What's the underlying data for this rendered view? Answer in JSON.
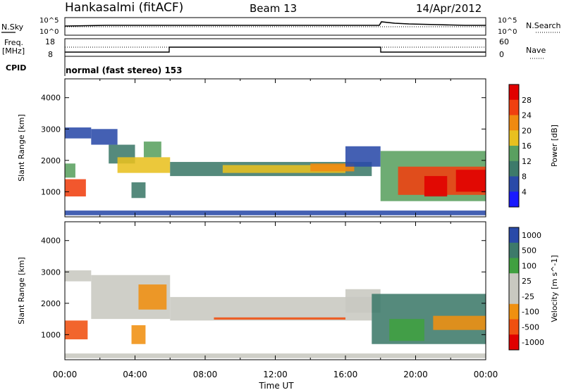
{
  "header": {
    "station": "Hankasalmi (fitACF)",
    "beam": "Beam 13",
    "date": "14/Apr/2012"
  },
  "noise_panel": {
    "left_label": "N.Sky",
    "right_label": "N.Search",
    "ticks": [
      "10^5",
      "10^0"
    ]
  },
  "freq_panel": {
    "left_label_1": "Freq.",
    "left_label_2": "[MHz]",
    "left_ticks": [
      "18",
      "8"
    ],
    "right_label": "Nave",
    "right_ticks": [
      "60",
      "0"
    ]
  },
  "cpid": {
    "label": "CPID",
    "text": "normal (fast stereo) 153"
  },
  "colors": {
    "power_scale": [
      "#1a1aff",
      "#2a4aa8",
      "#3d7a6a",
      "#5aa060",
      "#e8c020",
      "#f08a10",
      "#f04010",
      "#e00000"
    ],
    "velocity_scale": [
      "#e00000",
      "#f05010",
      "#f09010",
      "#c8c8c0",
      "#c8c8c0",
      "#40a040",
      "#3d7a6a",
      "#2a4aa8"
    ],
    "ground_scatter": "#c8c8c0"
  },
  "chart_data": [
    {
      "type": "heatmap",
      "name": "power-panel",
      "ylabel": "Slant Range [km]",
      "yticks": [
        1000,
        2000,
        3000,
        4000
      ],
      "ylim": [
        200,
        4600
      ],
      "xlim": [
        0,
        24
      ],
      "colorbar": {
        "label": "Power [dB]",
        "ticks": [
          "28",
          "24",
          "20",
          "16",
          "12",
          "8",
          "4"
        ]
      },
      "bands": [
        {
          "t0": 0.0,
          "t1": 1.2,
          "r0": 850,
          "r1": 1400,
          "level": 6
        },
        {
          "t0": 0.0,
          "t1": 0.6,
          "r0": 1450,
          "r1": 1900,
          "level": 3
        },
        {
          "t0": 0.0,
          "t1": 1.5,
          "r0": 2700,
          "r1": 3050,
          "level": 1
        },
        {
          "t0": 1.5,
          "t1": 3.0,
          "r0": 2500,
          "r1": 3000,
          "level": 1
        },
        {
          "t0": 2.5,
          "t1": 4.0,
          "r0": 1900,
          "r1": 2500,
          "level": 2
        },
        {
          "t0": 3.0,
          "t1": 6.0,
          "r0": 1600,
          "r1": 2100,
          "level": 4
        },
        {
          "t0": 4.5,
          "t1": 5.5,
          "r0": 2100,
          "r1": 2600,
          "level": 3
        },
        {
          "t0": 3.8,
          "t1": 4.6,
          "r0": 800,
          "r1": 1300,
          "level": 2
        },
        {
          "t0": 6.0,
          "t1": 17.5,
          "r0": 1500,
          "r1": 1950,
          "level": 2
        },
        {
          "t0": 9.0,
          "t1": 16.0,
          "r0": 1600,
          "r1": 1850,
          "level": 4
        },
        {
          "t0": 14.0,
          "t1": 16.5,
          "r0": 1650,
          "r1": 1900,
          "level": 5
        },
        {
          "t0": 16.0,
          "t1": 18.0,
          "r0": 1800,
          "r1": 2450,
          "level": 1
        },
        {
          "t0": 18.0,
          "t1": 24.0,
          "r0": 700,
          "r1": 2300,
          "level": 3
        },
        {
          "t0": 19.0,
          "t1": 24.0,
          "r0": 900,
          "r1": 1800,
          "level": 6
        },
        {
          "t0": 20.5,
          "t1": 21.8,
          "r0": 850,
          "r1": 1500,
          "level": 7
        },
        {
          "t0": 22.3,
          "t1": 24.0,
          "r0": 1000,
          "r1": 1700,
          "level": 7
        },
        {
          "t0": 0.0,
          "t1": 24.0,
          "r0": 250,
          "r1": 400,
          "level": 1
        }
      ]
    },
    {
      "type": "heatmap",
      "name": "velocity-panel",
      "xlabel": "Time UT",
      "ylabel": "Slant Range [km]",
      "yticks": [
        1000,
        2000,
        3000,
        4000
      ],
      "ylim": [
        200,
        4600
      ],
      "xlim": [
        0,
        24
      ],
      "xticks": [
        "00:00",
        "04:00",
        "08:00",
        "12:00",
        "16:00",
        "20:00",
        "00:00"
      ],
      "colorbar": {
        "label": "Velocity [m s^-1]",
        "ticks": [
          "1000",
          "500",
          "100",
          "25",
          "-25",
          "-100",
          "-500",
          "-1000"
        ]
      },
      "bands": [
        {
          "t0": 0.0,
          "t1": 1.3,
          "r0": 850,
          "r1": 1450,
          "level": 1
        },
        {
          "t0": 0.0,
          "t1": 1.5,
          "r0": 2700,
          "r1": 3050,
          "level": 3
        },
        {
          "t0": 1.5,
          "t1": 6.0,
          "r0": 1500,
          "r1": 2900,
          "level": 3
        },
        {
          "t0": 4.2,
          "t1": 5.8,
          "r0": 1800,
          "r1": 2600,
          "level": 2
        },
        {
          "t0": 3.8,
          "t1": 4.6,
          "r0": 700,
          "r1": 1300,
          "level": 2
        },
        {
          "t0": 6.0,
          "t1": 17.5,
          "r0": 1450,
          "r1": 2200,
          "level": 3
        },
        {
          "t0": 8.5,
          "t1": 16.0,
          "r0": 1480,
          "r1": 1550,
          "level": 1
        },
        {
          "t0": 16.0,
          "t1": 18.0,
          "r0": 1700,
          "r1": 2450,
          "level": 3
        },
        {
          "t0": 17.5,
          "t1": 24.0,
          "r0": 700,
          "r1": 2300,
          "level": 6
        },
        {
          "t0": 18.5,
          "t1": 20.5,
          "r0": 800,
          "r1": 1500,
          "level": 5
        },
        {
          "t0": 21.0,
          "t1": 24.0,
          "r0": 1150,
          "r1": 1600,
          "level": 2
        },
        {
          "t0": 0.0,
          "t1": 24.0,
          "r0": 250,
          "r1": 400,
          "level": 3
        }
      ]
    }
  ]
}
